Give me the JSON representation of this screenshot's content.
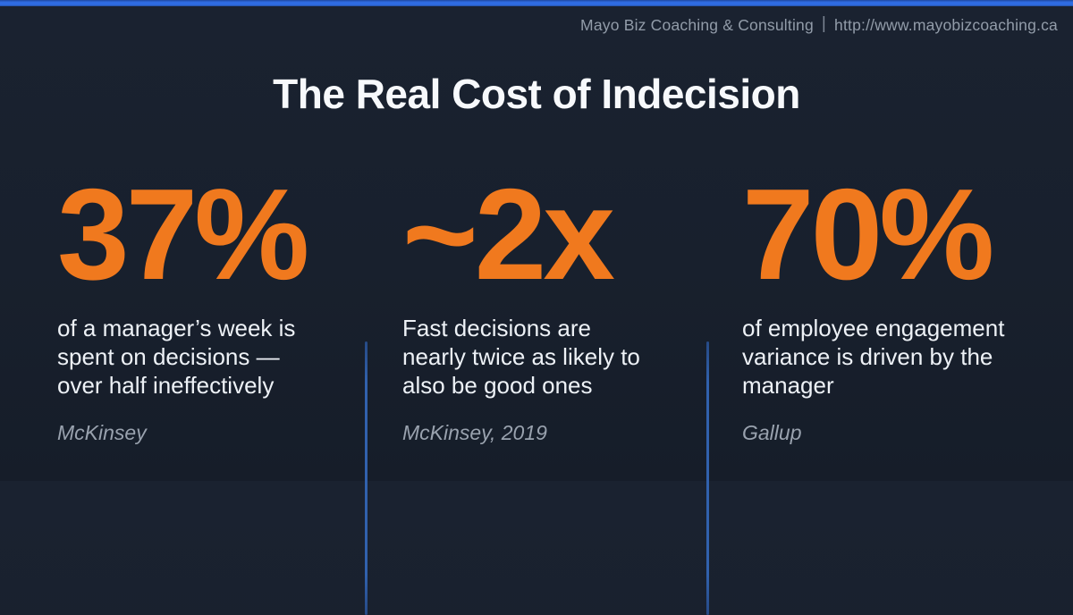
{
  "page": {
    "background_color": "#18202d",
    "accent_bar_color": "#2f6ce2",
    "divider_color": "#3161ad",
    "stat_color": "#f0791e",
    "body_text_color": "#edf1f6",
    "source_text_color": "#99a2ae"
  },
  "header": {
    "brand": "Mayo Biz Coaching & Consulting",
    "separator": "|",
    "url": "http://www.mayobizcoaching.ca"
  },
  "title": "The Real Cost of Indecision",
  "stats": [
    {
      "value": "37%",
      "description": "of a manager’s week is\nspent on decisions —\nover half ineffectively",
      "source": "McKinsey"
    },
    {
      "value": "~2x",
      "description": "Fast decisions are\nnearly twice as likely to\nalso be good ones",
      "source": "McKinsey, 2019"
    },
    {
      "value": "70%",
      "description": "of employee engagement\nvariance is driven by the\nmanager",
      "source": "Gallup"
    }
  ]
}
